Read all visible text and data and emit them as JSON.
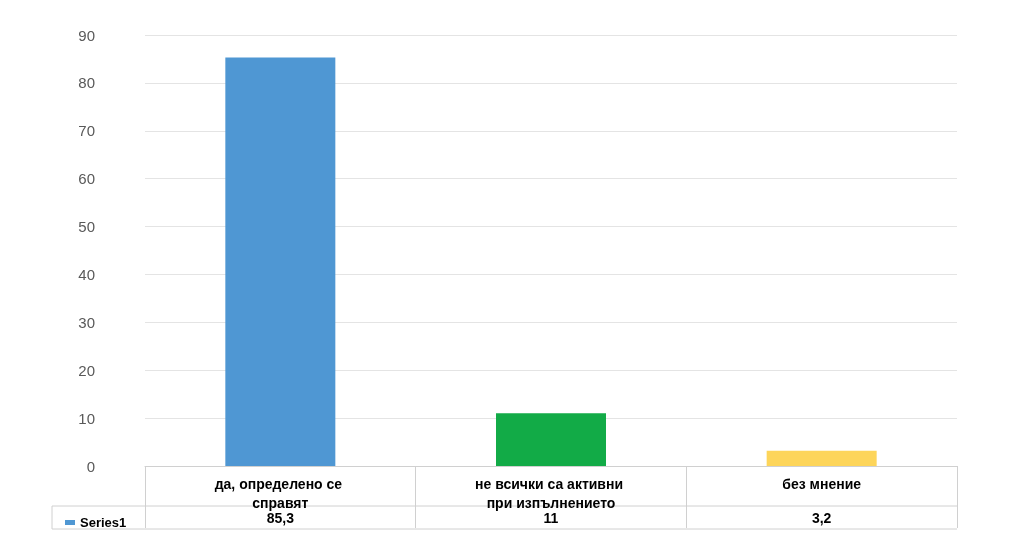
{
  "chart_data": {
    "type": "bar",
    "categories": [
      "да, определено се справят",
      "не всички са активни при изпълнението",
      "без мнение"
    ],
    "series": [
      {
        "name": "Series1",
        "color": "#4f97d3",
        "colors": [
          "#4f97d3",
          "#12ab47",
          "#fdd55a"
        ],
        "values": [
          85.3,
          11,
          3.2
        ],
        "value_labels": [
          "85,3",
          "11",
          "3,2"
        ]
      }
    ],
    "ylim": [
      0,
      90
    ],
    "yticks": [
      0,
      10,
      20,
      30,
      40,
      50,
      60,
      70,
      80,
      90
    ],
    "grid": "y",
    "legend": "bottom left"
  }
}
